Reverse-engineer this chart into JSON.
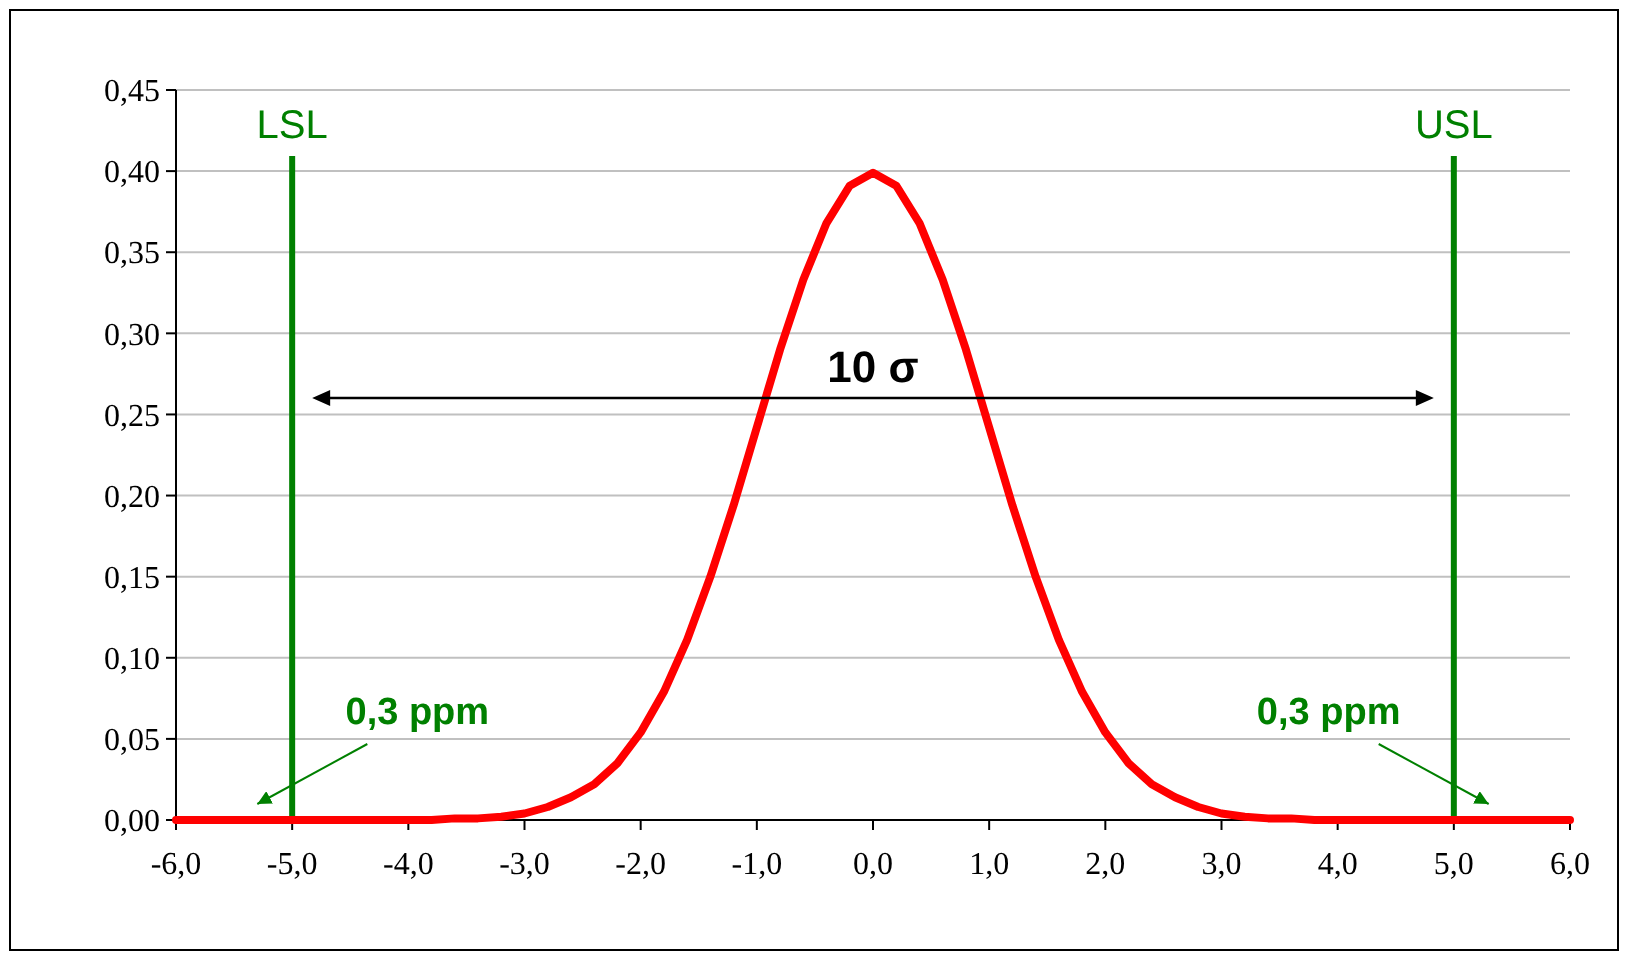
{
  "chart_data": {
    "type": "line",
    "x": [
      -6,
      -5.8,
      -5.6,
      -5.4,
      -5.2,
      -5,
      -4.8,
      -4.6,
      -4.4,
      -4.2,
      -4,
      -3.8,
      -3.6,
      -3.4,
      -3.2,
      -3,
      -2.8,
      -2.6,
      -2.4,
      -2.2,
      -2,
      -1.8,
      -1.6,
      -1.4,
      -1.2,
      -1,
      -0.8,
      -0.6,
      -0.4,
      -0.2,
      0,
      0.2,
      0.4,
      0.6,
      0.8,
      1,
      1.2,
      1.4,
      1.6,
      1.8,
      2,
      2.2,
      2.4,
      2.6,
      2.8,
      3,
      3.2,
      3.4,
      3.6,
      3.8,
      4,
      4.2,
      4.4,
      4.6,
      4.8,
      5,
      5.2,
      5.4,
      5.6,
      5.8,
      6
    ],
    "series": [
      {
        "color": "#ff0000",
        "values": [
          0,
          0,
          0,
          0,
          0,
          0,
          0,
          0,
          0,
          0,
          0,
          0,
          0.001,
          0.001,
          0.002,
          0.004,
          0.008,
          0.014,
          0.022,
          0.035,
          0.054,
          0.079,
          0.111,
          0.15,
          0.194,
          0.242,
          0.29,
          0.333,
          0.368,
          0.391,
          0.399,
          0.391,
          0.368,
          0.333,
          0.29,
          0.242,
          0.194,
          0.15,
          0.111,
          0.079,
          0.054,
          0.035,
          0.022,
          0.014,
          0.008,
          0.004,
          0.002,
          0.001,
          0.001,
          0,
          0,
          0,
          0,
          0,
          0,
          0,
          0,
          0,
          0,
          0,
          0
        ]
      }
    ],
    "xlim": [
      -6,
      6
    ],
    "ylim": [
      0,
      0.45
    ],
    "xticks": [
      {
        "value": -6,
        "label": "-6,0"
      },
      {
        "value": -5,
        "label": "-5,0"
      },
      {
        "value": -4,
        "label": "-4,0"
      },
      {
        "value": -3,
        "label": "-3,0"
      },
      {
        "value": -2,
        "label": "-2,0"
      },
      {
        "value": -1,
        "label": "-1,0"
      },
      {
        "value": 0,
        "label": "0,0"
      },
      {
        "value": 1,
        "label": "1,0"
      },
      {
        "value": 2,
        "label": "2,0"
      },
      {
        "value": 3,
        "label": "3,0"
      },
      {
        "value": 4,
        "label": "4,0"
      },
      {
        "value": 5,
        "label": "5,0"
      },
      {
        "value": 6,
        "label": "6,0"
      }
    ],
    "yticks": [
      {
        "value": 0,
        "label": "0,00"
      },
      {
        "value": 0.05,
        "label": "0,05"
      },
      {
        "value": 0.1,
        "label": "0,10"
      },
      {
        "value": 0.15,
        "label": "0,15"
      },
      {
        "value": 0.2,
        "label": "0,20"
      },
      {
        "value": 0.25,
        "label": "0,25"
      },
      {
        "value": 0.3,
        "label": "0,30"
      },
      {
        "value": 0.35,
        "label": "0,35"
      },
      {
        "value": 0.4,
        "label": "0,40"
      },
      {
        "value": 0.45,
        "label": "0,45"
      }
    ],
    "grid": "y",
    "marker": "none",
    "line_style": "solid",
    "ref_lines": [
      {
        "axis": "x",
        "value": -5,
        "label": "LSL",
        "color": "#008000"
      },
      {
        "axis": "x",
        "value": 5,
        "label": "USL",
        "color": "#008000"
      }
    ],
    "annotations": [
      "10 σ",
      {
        "text": "0,3 ppm",
        "x": -5.3,
        "y": 0
      },
      {
        "text": "0,3 ppm",
        "x": 5.3,
        "y": 0
      }
    ]
  }
}
